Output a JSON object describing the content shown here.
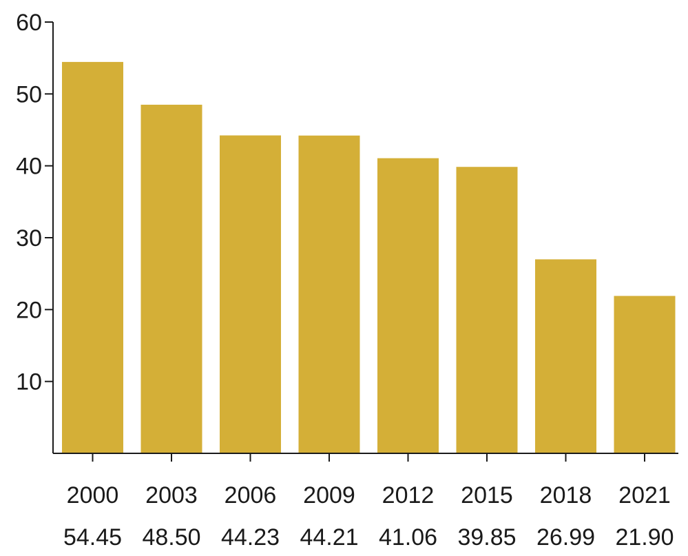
{
  "chart_data": {
    "type": "bar",
    "title": "",
    "xlabel": "",
    "ylabel": "",
    "categories": [
      "2000",
      "2003",
      "2006",
      "2009",
      "2012",
      "2015",
      "2018",
      "2021"
    ],
    "values": [
      54.45,
      48.5,
      44.23,
      44.21,
      41.06,
      39.85,
      26.99,
      21.9
    ],
    "value_labels": [
      "54.45",
      "48.50",
      "44.23",
      "44.21",
      "41.06",
      "39.85",
      "26.99",
      "21.90"
    ],
    "ylim": [
      0,
      60
    ],
    "yticks": [
      10,
      20,
      30,
      40,
      50,
      60
    ],
    "grid": false,
    "legend": "none",
    "bar_color": "#d4af37"
  }
}
